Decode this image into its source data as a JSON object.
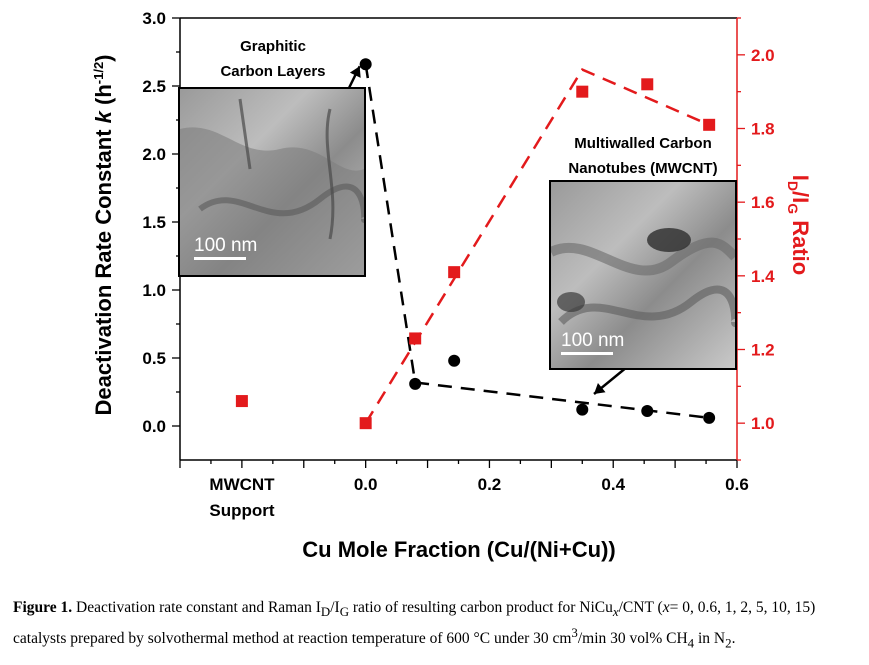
{
  "chart_data": {
    "type": "scatter",
    "xlabel": "Cu Mole Fraction (Cu/(Ni+Cu))",
    "ylabel_left_main": "Deactivation Rate Constant ",
    "ylabel_left_k": "k",
    "ylabel_left_unit": " (h",
    "ylabel_left_sup": "-1/2",
    "ylabel_left_end": ")",
    "ylabel_right_main": "I",
    "ylabel_right_sub1": "D",
    "ylabel_right_mid": "/I",
    "ylabel_right_sub2": "G",
    "ylabel_right_end": " Ratio",
    "xlim": [
      -0.3,
      0.6
    ],
    "ylim_left": [
      -0.25,
      3.0
    ],
    "ylim_right": [
      0.9,
      2.1
    ],
    "x_ticks": [
      "0.0",
      "0.2",
      "0.4",
      "0.6"
    ],
    "x_tick_values": [
      0.0,
      0.2,
      0.4,
      0.6
    ],
    "x_category_label_1": "MWCNT",
    "x_category_label_2": "Support",
    "y_left_ticks": [
      "0.0",
      "0.5",
      "1.0",
      "1.5",
      "2.0",
      "2.5",
      "3.0"
    ],
    "y_left_tick_values": [
      0.0,
      0.5,
      1.0,
      1.5,
      2.0,
      2.5,
      3.0
    ],
    "y_right_ticks": [
      "1.0",
      "1.2",
      "1.4",
      "1.6",
      "1.8",
      "2.0"
    ],
    "y_right_tick_values": [
      1.0,
      1.2,
      1.4,
      1.6,
      1.8,
      2.0
    ],
    "series": [
      {
        "axis": "left",
        "color": "#000000",
        "marker": "circle",
        "x": [
          0.0,
          0.08,
          0.143,
          0.35,
          0.455,
          0.555
        ],
        "y": [
          2.66,
          0.31,
          0.48,
          0.12,
          0.11,
          0.06
        ]
      },
      {
        "axis": "right",
        "color": "#e31a1c",
        "marker": "square",
        "x": [
          -0.2,
          0.0,
          0.08,
          0.143,
          0.35,
          0.455,
          0.555
        ],
        "y": [
          1.06,
          1.0,
          1.23,
          1.41,
          1.9,
          1.92,
          1.81
        ]
      }
    ],
    "trend_lines": [
      {
        "axis": "left",
        "color": "#000000",
        "x": [
          0.0,
          0.08,
          0.555
        ],
        "y": [
          2.66,
          0.32,
          0.06
        ]
      },
      {
        "axis": "right",
        "color": "#e31a1c",
        "x": [
          0.0,
          0.35,
          0.555
        ],
        "y": [
          1.0,
          1.96,
          1.81
        ]
      }
    ],
    "annotations": [
      {
        "lines": [
          "Graphitic",
          "Carbon Layers"
        ],
        "scale": "100 nm"
      },
      {
        "lines": [
          "Multiwalled Carbon",
          "Nanotubes (MWCNT)"
        ],
        "scale": "100 nm"
      }
    ],
    "colors": {
      "left_axis": "#000000",
      "right_axis": "#e31a1c"
    }
  },
  "caption": {
    "label": "Figure 1.",
    "text_1": "  Deactivation rate constant and Raman I",
    "sub_d": "D",
    "text_2": "/I",
    "sub_g": "G",
    "text_3": " ratio of resulting carbon product for NiCu",
    "sub_x": "x",
    "text_4": "/CNT (",
    "x_italic": "x",
    "text_5": "= 0, 0.6, 1, 2, 5, 10, 15) catalysts prepared by solvothermal method at reaction temperature of 600 °C under 30 cm",
    "sup_3": "3",
    "text_6": "/min 30 vol% CH",
    "sub_4": "4",
    "text_7": " in N",
    "sub_2": "2",
    "text_8": "."
  }
}
